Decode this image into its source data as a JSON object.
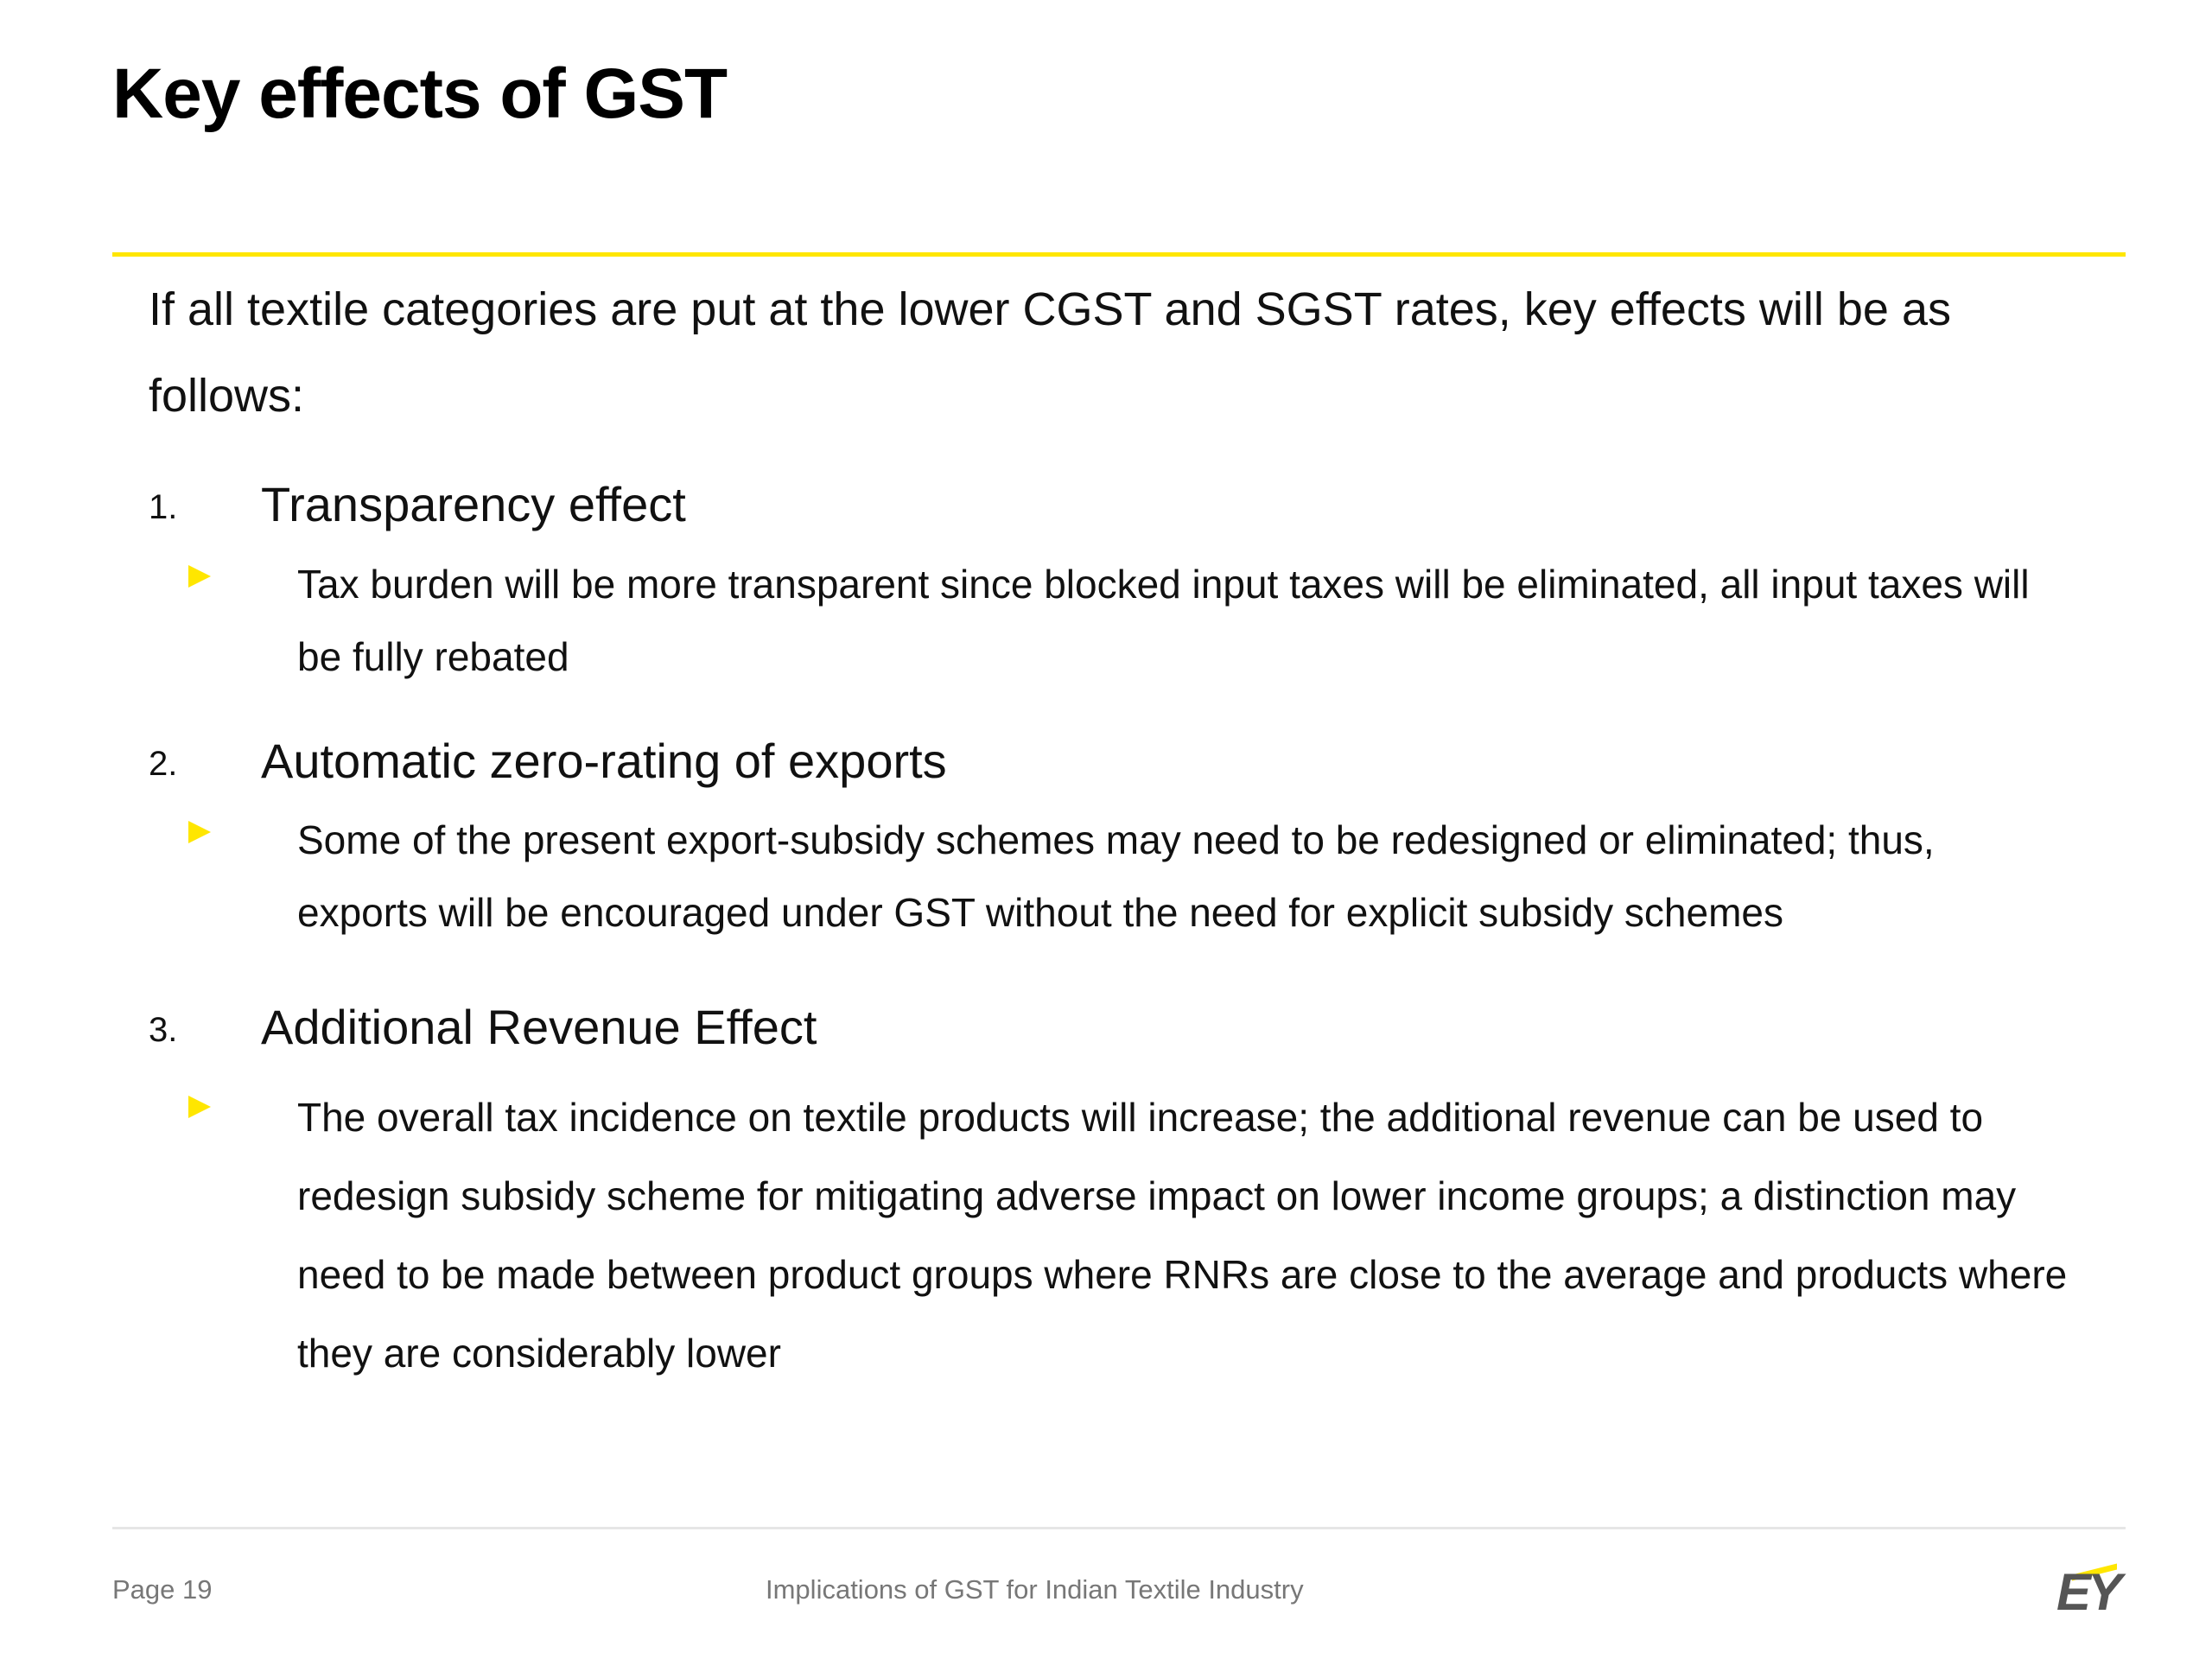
{
  "slide": {
    "title": "Key effects of GST",
    "intro": "If all textile categories are put at the lower CGST and SGST rates, key effects will be as follows:",
    "items": [
      {
        "number": "1.",
        "heading": "Transparency effect",
        "bullet": "Tax burden will be more transparent since blocked input taxes will be eliminated, all input taxes will be fully rebated"
      },
      {
        "number": "2.",
        "heading": "Automatic zero-rating of exports",
        "bullet": "Some of the present export-subsidy schemes may need to be redesigned or eliminated; thus, exports will be encouraged under GST without the need for explicit subsidy schemes"
      },
      {
        "number": "3.",
        "heading": "Additional Revenue Effect",
        "bullet": "The overall tax incidence on textile products will increase; the additional revenue can be used to redesign subsidy scheme for mitigating adverse impact on lower income groups; a distinction may need to be made between product groups where RNRs are close to the average and products where they are considerably lower"
      }
    ]
  },
  "footer": {
    "page": "Page 19",
    "document_title": "Implications of GST for Indian Textile Industry",
    "logo_text": "EY"
  },
  "colors": {
    "accent": "#FFE600",
    "text": "#111111",
    "footer_text": "#777777"
  }
}
